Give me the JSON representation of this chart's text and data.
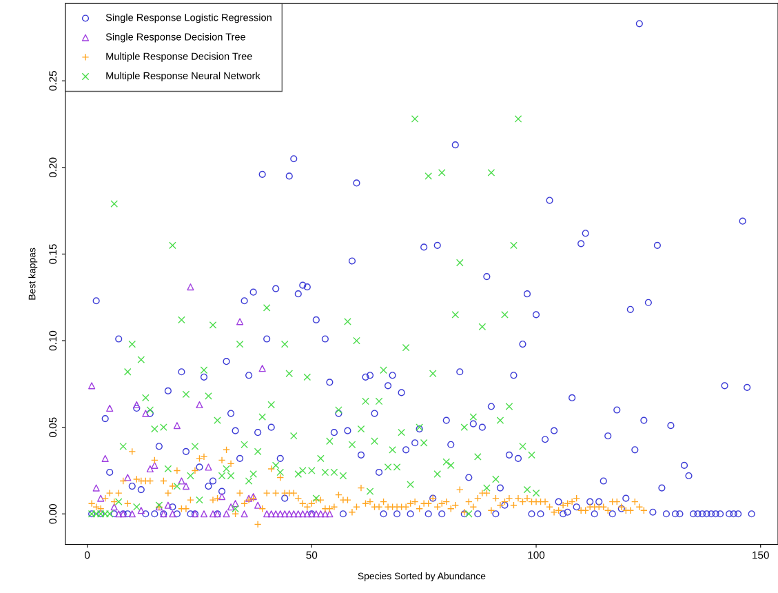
{
  "chart_data": {
    "type": "scatter",
    "xlabel": "Species Sorted by Abundance",
    "ylabel": "Best kappas",
    "xlim": [
      -4.88,
      153.88
    ],
    "ylim": [
      -0.0176,
      0.2946
    ],
    "xticks": [
      0,
      50,
      100,
      150
    ],
    "yticks": [
      {
        "value": 0,
        "label": "0.00"
      },
      {
        "value": 0.05,
        "label": "0.05"
      },
      {
        "value": 0.1,
        "label": "0.10"
      },
      {
        "value": 0.15,
        "label": "0.15"
      },
      {
        "value": 0.2,
        "label": "0.20"
      },
      {
        "value": 0.25,
        "label": "0.25"
      }
    ],
    "grid": false,
    "legend": "top left",
    "series": [
      {
        "name": "Single Response Logistic Regression",
        "color": "#3b3bd6",
        "marker": "circle",
        "x": [
          1,
          2,
          3,
          4,
          5,
          6,
          7,
          8,
          9,
          10,
          11,
          12,
          13,
          14,
          15,
          16,
          17,
          18,
          19,
          20,
          21,
          22,
          23,
          24,
          25,
          26,
          27,
          28,
          29,
          30,
          31,
          32,
          33,
          34,
          35,
          36,
          37,
          38,
          39,
          40,
          41,
          42,
          43,
          44,
          45,
          46,
          47,
          48,
          49,
          50,
          51,
          53,
          54,
          55,
          56,
          57,
          58,
          59,
          60,
          61,
          62,
          63,
          64,
          65,
          66,
          67,
          68,
          69,
          70,
          71,
          72,
          73,
          74,
          75,
          76,
          77,
          78,
          79,
          80,
          81,
          82,
          83,
          84,
          85,
          86,
          87,
          88,
          89,
          90,
          91,
          92,
          93,
          94,
          95,
          96,
          97,
          98,
          99,
          100,
          101,
          102,
          103,
          104,
          105,
          106,
          107,
          108,
          109,
          110,
          111,
          112,
          113,
          114,
          115,
          116,
          117,
          118,
          119,
          120,
          121,
          122,
          123,
          124,
          125,
          126,
          127,
          128,
          129,
          130,
          131,
          132,
          133,
          134,
          135,
          136,
          137,
          138,
          139,
          140,
          141,
          142,
          143,
          144,
          145,
          146,
          147,
          148
        ],
        "values": [
          0,
          0.123,
          0,
          0.055,
          0.024,
          0,
          0.101,
          0,
          0,
          0.016,
          0.061,
          0.014,
          0,
          0.058,
          0,
          0.039,
          0,
          0.071,
          0.004,
          0,
          0.082,
          0.036,
          0,
          0,
          0.027,
          0.079,
          0.016,
          0.019,
          0,
          0.013,
          0.088,
          0.058,
          0.048,
          0.032,
          0.123,
          0.08,
          0.128,
          0.047,
          0.196,
          0.101,
          0.05,
          0.13,
          0.032,
          0.009,
          0.195,
          0.205,
          0.127,
          0.132,
          0.131,
          0,
          0.112,
          0.101,
          0.076,
          0.047,
          0.058,
          0,
          0.048,
          0.146,
          0.191,
          0.034,
          0.079,
          0.08,
          0.058,
          0.024,
          0,
          0.074,
          0.08,
          0,
          0.07,
          0.037,
          0,
          0.041,
          0.049,
          0.154,
          0,
          0.009,
          0.155,
          0,
          0.054,
          0.04,
          0.213,
          0.082,
          0,
          0.021,
          0.052,
          0,
          0.05,
          0.137,
          0.062,
          0,
          0.015,
          0.005,
          0.034,
          0.08,
          0.032,
          0.098,
          0.127,
          0,
          0.115,
          0,
          0.043,
          0.181,
          0.048,
          0.007,
          0,
          0.001,
          0.067,
          0.004,
          0.156,
          0.162,
          0.007,
          0,
          0.007,
          0.019,
          0.045,
          0,
          0.06,
          0.003,
          0.009,
          0.118,
          0.037,
          0.283,
          0.054,
          0.122,
          0.001,
          0.155,
          0.015,
          0,
          0.051,
          0,
          0,
          0.028,
          0.022,
          0,
          0,
          0,
          0,
          0,
          0,
          0,
          0.074,
          0,
          0,
          0,
          0.169,
          0.073,
          0
        ]
      },
      {
        "name": "Single Response Decision Tree",
        "color": "#a040e0",
        "marker": "triangle",
        "x": [
          1,
          2,
          3,
          4,
          5,
          6,
          7,
          8,
          9,
          10,
          11,
          12,
          13,
          14,
          15,
          16,
          17,
          18,
          19,
          20,
          21,
          22,
          23,
          24,
          25,
          26,
          27,
          28,
          29,
          30,
          31,
          32,
          33,
          34,
          35,
          36,
          37,
          38,
          39,
          40,
          41,
          42,
          43,
          44,
          45,
          46,
          47,
          48,
          49,
          50,
          51,
          52,
          53,
          54
        ],
        "values": [
          0.074,
          0.015,
          0.009,
          0.032,
          0.061,
          0.004,
          0,
          0,
          0.021,
          0,
          0.063,
          0.002,
          0.058,
          0.026,
          0.028,
          0.004,
          0,
          0.005,
          0,
          0.051,
          0.019,
          0.016,
          0.131,
          0,
          0.063,
          0,
          0.027,
          0,
          0,
          0.01,
          0,
          0.004,
          0.006,
          0.111,
          0,
          0.009,
          0.01,
          0.005,
          0.084,
          0,
          0,
          0,
          0,
          0,
          0,
          0,
          0,
          0,
          0,
          0,
          0,
          0,
          0,
          0
        ]
      },
      {
        "name": "Multiple Response Decision Tree",
        "color": "#ffa520",
        "marker": "plus",
        "x": [
          1,
          2,
          3,
          4,
          5,
          6,
          7,
          8,
          9,
          10,
          11,
          12,
          13,
          14,
          15,
          16,
          17,
          18,
          19,
          20,
          21,
          22,
          23,
          24,
          25,
          26,
          28,
          29,
          30,
          31,
          32,
          33,
          34,
          35,
          36,
          37,
          38,
          39,
          40,
          41,
          42,
          43,
          44,
          45,
          46,
          47,
          48,
          49,
          50,
          51,
          52,
          53,
          54,
          55,
          56,
          57,
          58,
          59,
          60,
          61,
          62,
          63,
          64,
          65,
          66,
          67,
          68,
          69,
          70,
          71,
          72,
          73,
          74,
          75,
          76,
          77,
          78,
          79,
          80,
          81,
          82,
          83,
          84,
          85,
          86,
          87,
          88,
          89,
          90,
          91,
          92,
          93,
          94,
          95,
          96,
          97,
          98,
          99,
          100,
          101,
          102,
          103,
          104,
          105,
          106,
          107,
          108,
          109,
          110,
          111,
          112,
          113,
          114,
          115,
          116,
          117,
          118,
          119,
          120,
          121,
          122,
          123,
          124
        ],
        "values": [
          0.006,
          0.004,
          0.003,
          0.009,
          0.012,
          0.007,
          0.012,
          0.019,
          0.006,
          0.036,
          0.02,
          0.019,
          0.019,
          0.019,
          0.031,
          0.004,
          0.019,
          0.012,
          0.016,
          0.025,
          0.003,
          0.003,
          0.008,
          0.025,
          0.032,
          0.033,
          0.008,
          0.009,
          0.031,
          0.037,
          0.029,
          0,
          0.012,
          0.006,
          0.008,
          0.009,
          -0.006,
          0.003,
          0.012,
          0.026,
          0.012,
          0.021,
          0.012,
          0.012,
          0.012,
          0.009,
          0.006,
          0.004,
          0.006,
          0.008,
          0.008,
          0.003,
          0.003,
          0.004,
          0.011,
          0.008,
          0.008,
          0.001,
          0.004,
          0.015,
          0.006,
          0.007,
          0.004,
          0.004,
          0.007,
          0.004,
          0.004,
          0.004,
          0.004,
          0.004,
          0.006,
          0.007,
          0.003,
          0.006,
          0.006,
          0.009,
          0.004,
          0.006,
          0.007,
          0.003,
          0.005,
          0.014,
          0.001,
          0.007,
          0.004,
          0.009,
          0.012,
          0.012,
          0.002,
          0.009,
          0.005,
          0.007,
          0.009,
          0.005,
          0.009,
          0.007,
          0.009,
          0.007,
          0.007,
          0.007,
          0.007,
          0.004,
          0.001,
          0.002,
          0.005,
          0.006,
          0.007,
          0.009,
          0.002,
          0.002,
          0.004,
          0.004,
          0.004,
          0.004,
          0.002,
          0.007,
          0.007,
          0.004,
          0.002,
          0.002,
          0.007,
          0.004,
          0.002
        ]
      },
      {
        "name": "Multiple Response Neural Network",
        "color": "#4ddc4d",
        "marker": "cross",
        "x": [
          1,
          2,
          3,
          4,
          5,
          6,
          7,
          8,
          9,
          10,
          11,
          12,
          13,
          14,
          15,
          16,
          17,
          18,
          19,
          20,
          21,
          22,
          23,
          24,
          25,
          26,
          27,
          28,
          29,
          30,
          31,
          32,
          33,
          34,
          35,
          36,
          37,
          38,
          39,
          40,
          41,
          42,
          43,
          44,
          45,
          46,
          47,
          48,
          49,
          50,
          51,
          52,
          53,
          54,
          55,
          56,
          57,
          58,
          59,
          60,
          61,
          62,
          63,
          64,
          65,
          66,
          67,
          68,
          69,
          70,
          71,
          72,
          73,
          74,
          75,
          76,
          77,
          78,
          79,
          80,
          81,
          82,
          83,
          84,
          85,
          86,
          87,
          88,
          89,
          90,
          91,
          92,
          93,
          94,
          95,
          96,
          97,
          98,
          99,
          100
        ],
        "values": [
          0,
          0,
          0,
          0,
          0,
          0.179,
          0.007,
          0.039,
          0.082,
          0.098,
          0.004,
          0.089,
          0.067,
          0.06,
          0.049,
          0.005,
          0.05,
          0.026,
          0.155,
          0.016,
          0.112,
          0.069,
          0.022,
          0.039,
          0.008,
          0.083,
          0.068,
          0.109,
          0.054,
          0.022,
          0.026,
          0.022,
          0.003,
          0.098,
          0.04,
          0.019,
          0.023,
          0.036,
          0.056,
          0.119,
          0.063,
          0.028,
          0.024,
          0.098,
          0.081,
          0.045,
          0.023,
          0.025,
          0.079,
          0.025,
          0.009,
          0.032,
          0.024,
          0.042,
          0.024,
          0.06,
          0.022,
          0.111,
          0.04,
          0.1,
          0.049,
          0.065,
          0.013,
          0.042,
          0.065,
          0.083,
          0.027,
          0.037,
          0.027,
          0.047,
          0.096,
          0.017,
          0.228,
          0.05,
          0.041,
          0.195,
          0.081,
          0.023,
          0.197,
          0.03,
          0.028,
          0.115,
          0.145,
          0.05,
          0,
          0.056,
          0.033,
          0.108,
          0.015,
          0.197,
          0.02,
          0.054,
          0.115,
          0.062,
          0.155,
          0.228,
          0.039,
          0.014,
          0.034,
          0.012
        ]
      }
    ]
  }
}
